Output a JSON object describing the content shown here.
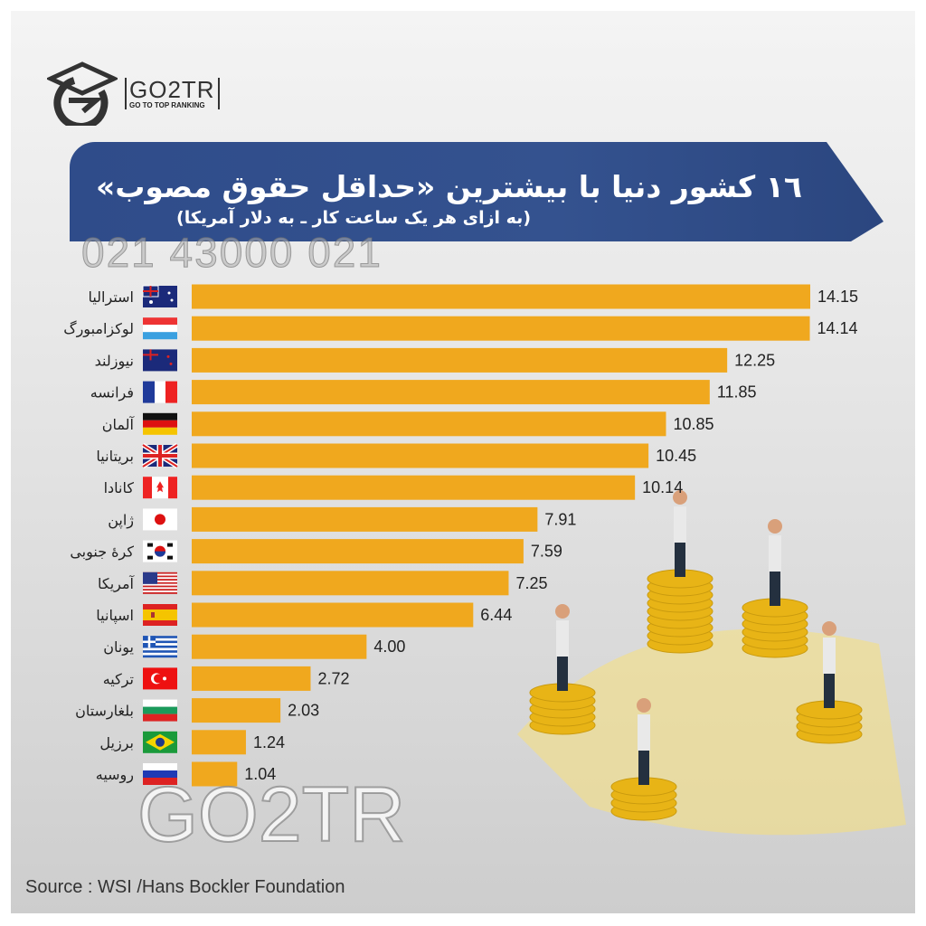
{
  "brand": {
    "name": "GO2TR",
    "tagline": "GO TO TOP RANKING",
    "watermark_phone": "021 43000 021",
    "watermark_logo": "GO2TR"
  },
  "source": "Source : WSI /Hans Bockler Foundation",
  "colors": {
    "bar": "#f0a81e",
    "banner": "#2f4c8a",
    "coin": "#f5c518"
  },
  "chart_data": {
    "type": "bar",
    "orientation": "horizontal",
    "title": "١٦ کشور دنیا با بیشترین «حداقل حقوق مصوب»",
    "subtitle": "(به ازای هر یک ساعت کار ـ به دلار آمریکا)",
    "categories": [
      "استرالیا",
      "لوکزامبورگ",
      "نیوزلند",
      "فرانسه",
      "آلمان",
      "بریتانیا",
      "کانادا",
      "ژاپن",
      "کرهٔ جنوبی",
      "آمریکا",
      "اسپانیا",
      "یونان",
      "ترکیه",
      "بلغارستان",
      "برزیل",
      "روسیه"
    ],
    "flags": [
      "australia-flag-icon",
      "luxembourg-flag-icon",
      "new-zealand-flag-icon",
      "france-flag-icon",
      "germany-flag-icon",
      "uk-flag-icon",
      "canada-flag-icon",
      "japan-flag-icon",
      "south-korea-flag-icon",
      "usa-flag-icon",
      "spain-flag-icon",
      "greece-flag-icon",
      "turkey-flag-icon",
      "bulgaria-flag-icon",
      "brazil-flag-icon",
      "russia-flag-icon"
    ],
    "values": [
      14.15,
      14.14,
      12.25,
      11.85,
      10.85,
      10.45,
      10.14,
      7.91,
      7.59,
      7.25,
      6.44,
      4.0,
      2.72,
      2.03,
      1.24,
      1.04
    ],
    "labels": [
      "14.15",
      "14.14",
      "12.25",
      "11.85",
      "10.85",
      "10.45",
      "10.14",
      "7.91",
      "7.59",
      "7.25",
      "6.44",
      "4.00",
      "2.72",
      "2.03",
      "1.24",
      "1.04"
    ],
    "xlim": [
      0,
      14.15
    ],
    "grid": false,
    "legend": "none"
  }
}
